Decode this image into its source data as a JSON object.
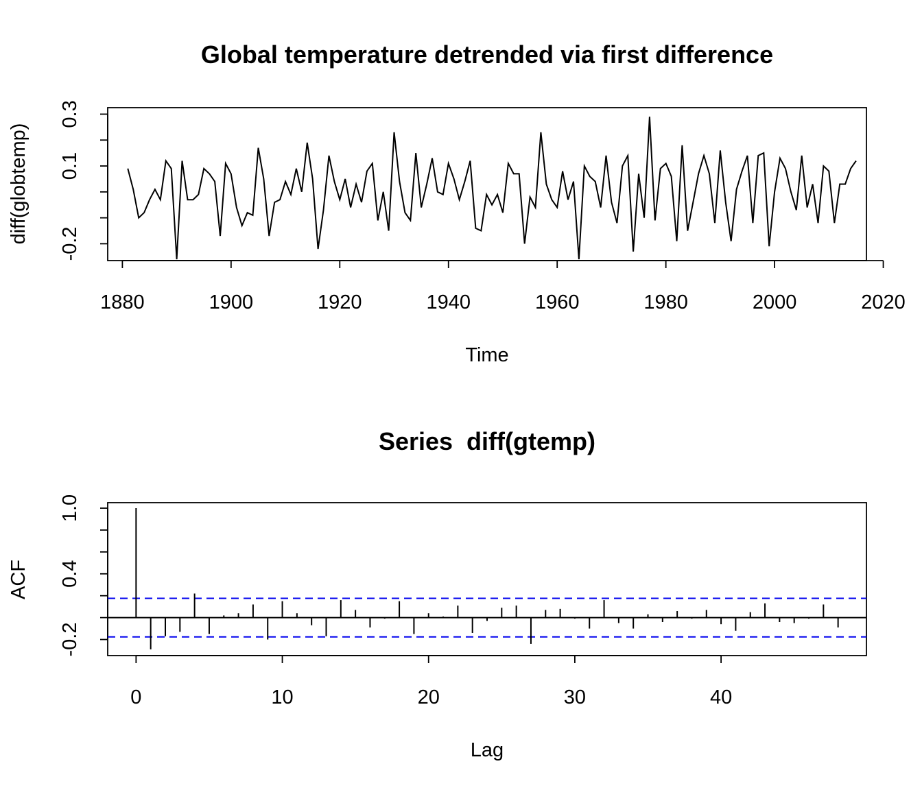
{
  "chart_data": [
    {
      "type": "line",
      "title": "Global temperature detrended via first difference",
      "xlabel": "Time",
      "ylabel": "diff(globtemp)",
      "xlim": [
        1877.3,
        2016.9
      ],
      "ylim": [
        -0.265,
        0.325
      ],
      "x_ticks": [
        1880,
        1900,
        1920,
        1940,
        1960,
        1980,
        2000,
        2020
      ],
      "y_ticks": [
        -0.2,
        -0.1,
        0.0,
        0.1,
        0.2,
        0.3
      ],
      "y_tick_labels": [
        "-0.2",
        "",
        "",
        "0.1",
        "",
        "0.3"
      ],
      "grid": false,
      "line_color": "#000000",
      "series": [
        {
          "x": [
            1881,
            1882,
            1883,
            1884,
            1885,
            1886,
            1887,
            1888,
            1889,
            1890,
            1891,
            1892,
            1893,
            1894,
            1895,
            1896,
            1897,
            1898,
            1899,
            1900,
            1901,
            1902,
            1903,
            1904,
            1905,
            1906,
            1907,
            1908,
            1909,
            1910,
            1911,
            1912,
            1913,
            1914,
            1915,
            1916,
            1917,
            1918,
            1919,
            1920,
            1921,
            1922,
            1923,
            1924,
            1925,
            1926,
            1927,
            1928,
            1929,
            1930,
            1931,
            1932,
            1933,
            1934,
            1935,
            1936,
            1937,
            1938,
            1939,
            1940,
            1941,
            1942,
            1943,
            1944,
            1945,
            1946,
            1947,
            1948,
            1949,
            1950,
            1951,
            1952,
            1953,
            1954,
            1955,
            1956,
            1957,
            1958,
            1959,
            1960,
            1961,
            1962,
            1963,
            1964,
            1965,
            1966,
            1967,
            1968,
            1969,
            1970,
            1971,
            1972,
            1973,
            1974,
            1975,
            1976,
            1977,
            1978,
            1979,
            1980,
            1981,
            1982,
            1983,
            1984,
            1985,
            1986,
            1987,
            1988,
            1989,
            1990,
            1991,
            1992,
            1993,
            1994,
            1995,
            1996,
            1997,
            1998,
            1999,
            2000,
            2001,
            2002,
            2003,
            2004,
            2005,
            2006,
            2007,
            2008,
            2009,
            2010,
            2011,
            2012,
            2013,
            2014,
            2015
          ],
          "y": [
            0.09,
            0.01,
            -0.1,
            -0.08,
            -0.03,
            0.01,
            -0.03,
            0.12,
            0.09,
            -0.26,
            0.12,
            -0.03,
            -0.03,
            -0.01,
            0.09,
            0.07,
            0.04,
            -0.17,
            0.11,
            0.07,
            -0.06,
            -0.13,
            -0.08,
            -0.09,
            0.17,
            0.05,
            -0.17,
            -0.04,
            -0.03,
            0.04,
            -0.01,
            0.09,
            0.0,
            0.19,
            0.05,
            -0.22,
            -0.07,
            0.14,
            0.04,
            -0.03,
            0.05,
            -0.06,
            0.03,
            -0.04,
            0.08,
            0.11,
            -0.11,
            0.0,
            -0.15,
            0.23,
            0.04,
            -0.08,
            -0.11,
            0.15,
            -0.06,
            0.03,
            0.13,
            0.0,
            -0.01,
            0.11,
            0.05,
            -0.03,
            0.04,
            0.12,
            -0.14,
            -0.15,
            -0.01,
            -0.05,
            -0.01,
            -0.08,
            0.11,
            0.07,
            0.07,
            -0.2,
            -0.02,
            -0.06,
            0.23,
            0.03,
            -0.03,
            -0.06,
            0.08,
            -0.03,
            0.04,
            -0.26,
            0.1,
            0.06,
            0.04,
            -0.06,
            0.14,
            -0.04,
            -0.12,
            0.1,
            0.14,
            -0.23,
            0.07,
            -0.1,
            0.29,
            -0.11,
            0.09,
            0.11,
            0.06,
            -0.19,
            0.18,
            -0.15,
            -0.04,
            0.07,
            0.14,
            0.07,
            -0.12,
            0.16,
            -0.04,
            -0.19,
            0.01,
            0.08,
            0.14,
            -0.12,
            0.14,
            0.15,
            -0.21,
            0.0,
            0.13,
            0.09,
            0.0,
            -0.07,
            0.14,
            -0.06,
            0.03,
            -0.12,
            0.1,
            0.08,
            -0.12,
            0.03,
            0.03,
            0.09,
            0.12
          ]
        }
      ]
    },
    {
      "type": "bar",
      "title": "Series  diff(gtemp)",
      "xlabel": "Lag",
      "ylabel": "ACF",
      "xlim": [
        -1.94,
        49.94
      ],
      "ylim": [
        -0.347,
        1.0
      ],
      "x_ticks": [
        0,
        10,
        20,
        30,
        40
      ],
      "y_ticks": [
        -0.2,
        0.0,
        0.2,
        0.4,
        0.6,
        0.8,
        1.0
      ],
      "y_tick_labels": [
        "-0.2",
        "",
        "",
        "0.4",
        "",
        "",
        "1.0"
      ],
      "zero_line": true,
      "confidence_bounds": [
        0.176,
        -0.176
      ],
      "confidence_color": "#0000ee",
      "grid": false,
      "x": [
        0,
        1,
        2,
        3,
        4,
        5,
        6,
        7,
        8,
        9,
        10,
        11,
        12,
        13,
        14,
        15,
        16,
        17,
        18,
        19,
        20,
        21,
        22,
        23,
        24,
        25,
        26,
        27,
        28,
        29,
        30,
        31,
        32,
        33,
        34,
        35,
        36,
        37,
        38,
        39,
        40,
        41,
        42,
        43,
        44,
        45,
        46,
        47,
        48
      ],
      "values": [
        1.0,
        -0.29,
        -0.17,
        -0.13,
        0.22,
        -0.15,
        0.02,
        0.04,
        0.12,
        -0.2,
        0.15,
        0.04,
        -0.07,
        -0.17,
        0.16,
        0.07,
        -0.09,
        -0.01,
        0.15,
        -0.15,
        0.04,
        0.01,
        0.11,
        -0.14,
        -0.03,
        0.09,
        0.11,
        -0.24,
        0.07,
        0.08,
        -0.01,
        -0.1,
        0.16,
        -0.05,
        -0.1,
        0.03,
        -0.04,
        0.06,
        -0.01,
        0.07,
        -0.06,
        -0.12,
        0.05,
        0.13,
        -0.04,
        -0.05,
        -0.01,
        0.12,
        -0.09
      ]
    }
  ]
}
